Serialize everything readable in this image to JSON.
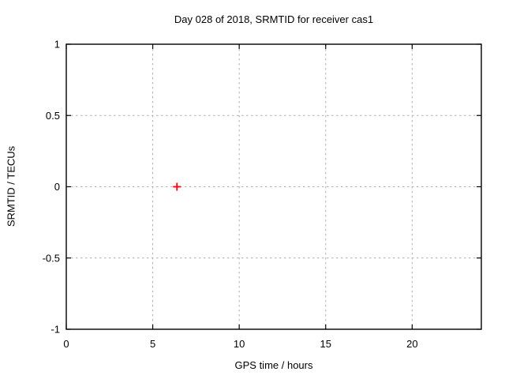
{
  "page": {
    "background": "#ffffff"
  },
  "chart_data": {
    "type": "scatter",
    "title": "Day 028 of 2018, SRMTID for receiver cas1",
    "xlabel": "GPS time / hours",
    "ylabel": "SRMTID / TECUs",
    "xlim": [
      0,
      24
    ],
    "ylim": [
      -1,
      1
    ],
    "xticks": [
      {
        "v": 0,
        "label": "0"
      },
      {
        "v": 5,
        "label": "5"
      },
      {
        "v": 10,
        "label": "10"
      },
      {
        "v": 15,
        "label": "15"
      },
      {
        "v": 20,
        "label": "20"
      }
    ],
    "yticks": [
      {
        "v": -1,
        "label": "-1"
      },
      {
        "v": -0.5,
        "label": "-0.5"
      },
      {
        "v": 0,
        "label": "0"
      },
      {
        "v": 0.5,
        "label": "0.5"
      },
      {
        "v": 1,
        "label": "1"
      }
    ],
    "grid": true,
    "legend_position": "none",
    "series": [
      {
        "name": "SRMTID",
        "marker": "plus",
        "color": "#ff0000",
        "points": [
          {
            "x": 6.4,
            "y": 0
          }
        ]
      }
    ],
    "colors": {
      "border": "#000000",
      "grid": "#b0b0b0",
      "text": "#000000"
    }
  }
}
